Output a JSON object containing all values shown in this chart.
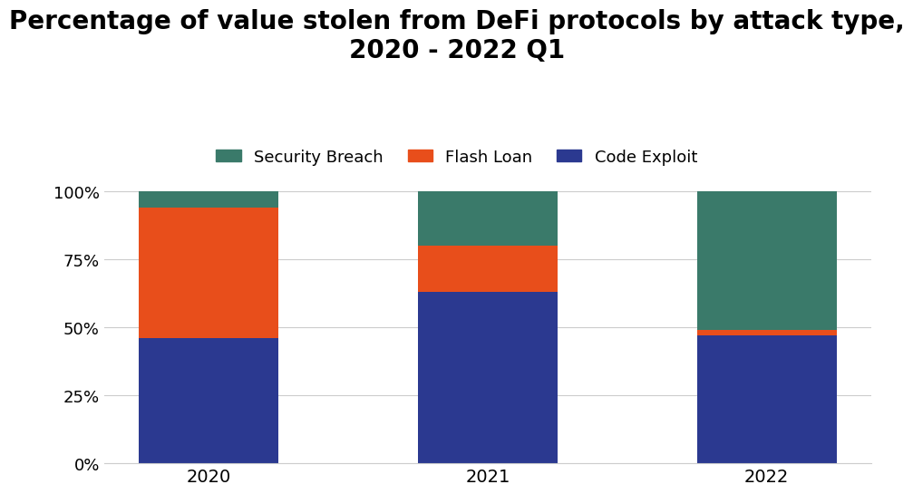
{
  "categories": [
    "2020",
    "2021",
    "2022"
  ],
  "code_exploit": [
    46,
    63,
    47
  ],
  "flash_loan": [
    48,
    17,
    2
  ],
  "security_breach": [
    6,
    20,
    51
  ],
  "colors": {
    "code_exploit": "#2b3990",
    "flash_loan": "#e84e1b",
    "security_breach": "#3a7a6a"
  },
  "title": "Percentage of value stolen from DeFi protocols by attack type,\n2020 - 2022 Q1",
  "title_fontsize": 20,
  "yticks": [
    0,
    25,
    50,
    75,
    100
  ],
  "ytick_labels": [
    "0%",
    "25%",
    "50%",
    "75%",
    "100%"
  ],
  "background_color": "#ffffff",
  "bar_width": 0.5
}
